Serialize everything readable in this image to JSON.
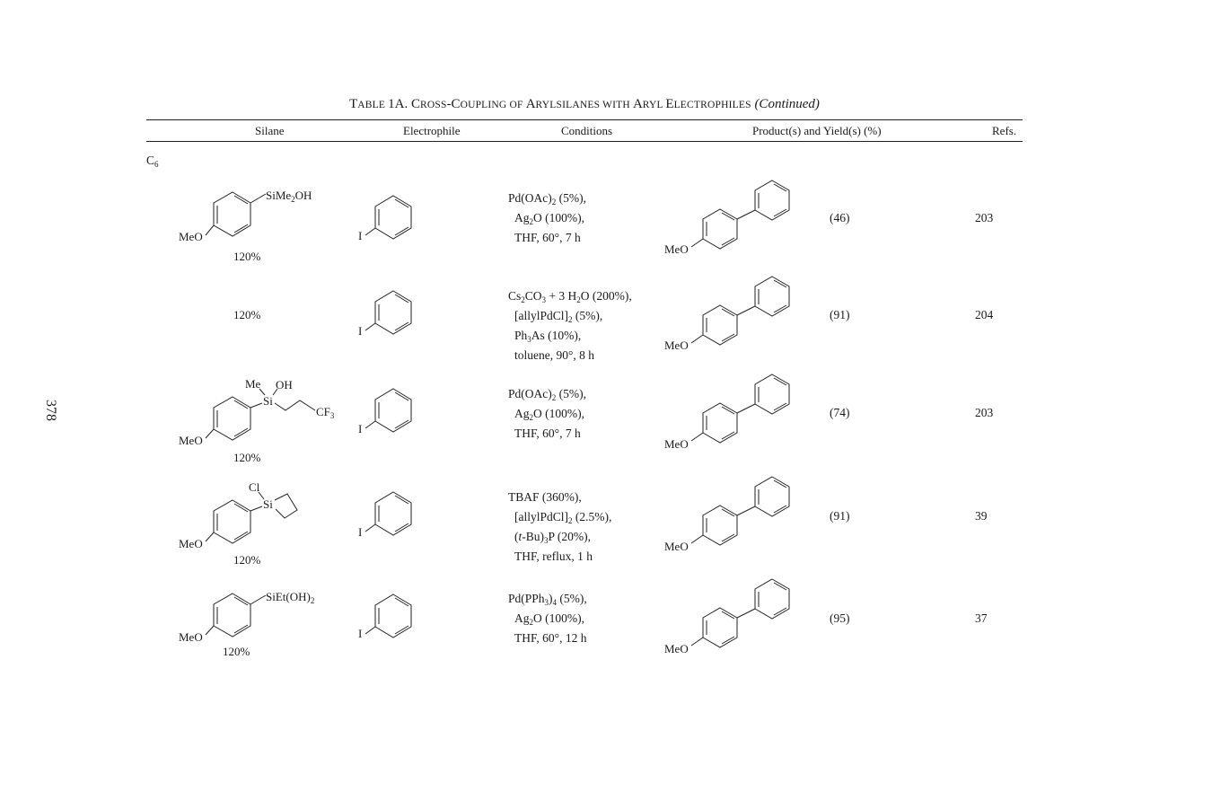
{
  "title": {
    "caps_1": "T",
    "small_1": "ABLE ",
    "caps_2": "1A. C",
    "small_2": "ROSS",
    "caps_3": "-C",
    "small_3": "OUPLING OF ",
    "caps_4": "A",
    "small_4": "RYLSILANES WITH ",
    "caps_5": "A",
    "small_5": "RYL ",
    "caps_6": "E",
    "small_6": "LECTROPHILES",
    "continued": "(Continued)"
  },
  "headers": {
    "silane": "Silane",
    "electrophile": "Electrophile",
    "conditions": "Conditions",
    "products": "Product(s) and Yield(s) (%)",
    "refs": "Refs."
  },
  "page_number": "378",
  "section": {
    "c": "C",
    "sub": "6"
  },
  "labels": {
    "meo": "MeO",
    "iodo": "I",
    "sime2oh_a": "SiMe",
    "sime2oh_sub": "2",
    "sime2oh_b": "OH",
    "me": "Me",
    "oh": "OH",
    "si": "Si",
    "cf3_a": "CF",
    "cf3_sub": "3",
    "cl": "Cl",
    "sieto_a": "SiEt(OH)",
    "sieto_sub": "2"
  },
  "rows": [
    {
      "silane_pct": "120%",
      "conditions": [
        {
          "a": "Pd(OAc)",
          "s": "2",
          "b": " (5%),"
        },
        {
          "a": "Ag",
          "s": "2",
          "b": "O (100%),"
        },
        {
          "a": "THF, 60°, 7 h",
          "s": "",
          "b": ""
        }
      ],
      "yield": "(46)",
      "ref": "203"
    },
    {
      "silane_pct": "120%",
      "conditions": [
        {
          "a": "Cs",
          "s": "2",
          "b": "CO",
          "s2": "3",
          "c": " + 3 H",
          "s3": "2",
          "d": "O (200%),"
        },
        {
          "a": "[allylPdCl]",
          "s": "2",
          "b": " (5%),"
        },
        {
          "a": "Ph",
          "s": "3",
          "b": "As (10%),"
        },
        {
          "a": "toluene, 90°, 8 h",
          "s": "",
          "b": ""
        }
      ],
      "yield": "(91)",
      "ref": "204"
    },
    {
      "silane_pct": "120%",
      "conditions": [
        {
          "a": "Pd(OAc)",
          "s": "2",
          "b": " (5%),"
        },
        {
          "a": "Ag",
          "s": "2",
          "b": "O (100%),"
        },
        {
          "a": "THF, 60°, 7 h",
          "s": "",
          "b": ""
        }
      ],
      "yield": "(74)",
      "ref": "203"
    },
    {
      "silane_pct": "120%",
      "conditions": [
        {
          "a": "TBAF (360%),",
          "s": "",
          "b": ""
        },
        {
          "a": "[allylPdCl]",
          "s": "2",
          "b": " (2.5%),"
        },
        {
          "a": "(t-Bu)",
          "s": "3",
          "b": "P (20%),"
        },
        {
          "a": "THF, reflux, 1 h",
          "s": "",
          "b": ""
        }
      ],
      "yield": "(91)",
      "ref": "39"
    },
    {
      "silane_pct": "120%",
      "conditions": [
        {
          "a": "Pd(PPh",
          "s": "3",
          "b": ")",
          "s2": "4",
          "c": " (5%),"
        },
        {
          "a": "Ag",
          "s": "2",
          "b": "O (100%),"
        },
        {
          "a": "THF, 60°, 12 h",
          "s": "",
          "b": ""
        }
      ],
      "yield": "(95)",
      "ref": "37"
    }
  ]
}
